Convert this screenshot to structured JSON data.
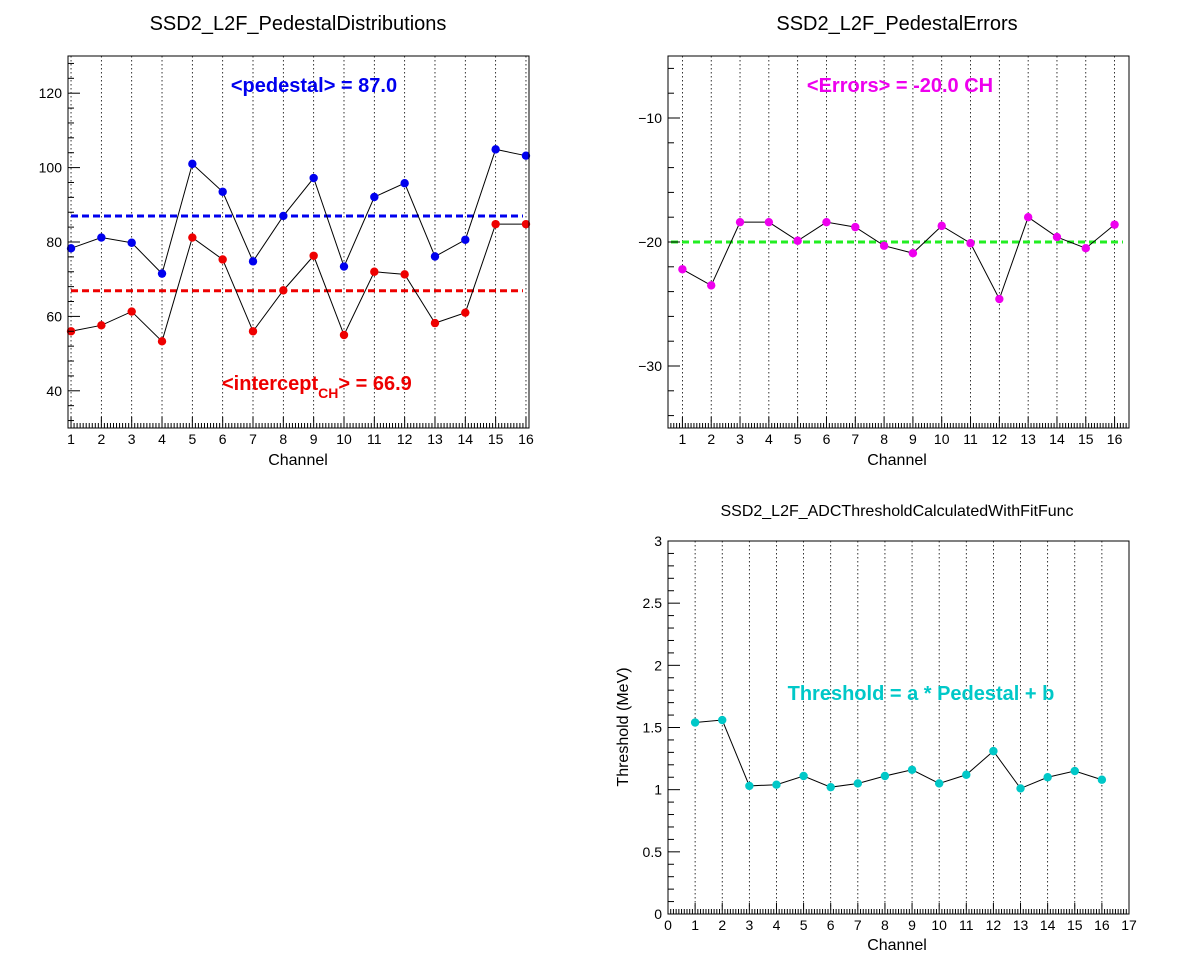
{
  "chart_data": [
    {
      "type": "line",
      "title": "SSD2_L2F_PedestalDistributions",
      "xlabel": "Channel",
      "ylabel": "",
      "xlim": [
        0.9,
        16.1
      ],
      "ylim": [
        30,
        130
      ],
      "x_ticks": [
        1,
        2,
        3,
        4,
        5,
        6,
        7,
        8,
        9,
        10,
        11,
        12,
        13,
        14,
        15,
        16
      ],
      "y_ticks": [
        40,
        60,
        80,
        100,
        120
      ],
      "vertical_grid": true,
      "x": [
        1,
        2,
        3,
        4,
        5,
        6,
        7,
        8,
        9,
        10,
        11,
        12,
        13,
        14,
        15,
        16
      ],
      "series": [
        {
          "name": "pedestal",
          "color": "#0000ee",
          "values": [
            78.3,
            81.2,
            79.8,
            71.5,
            101.0,
            93.5,
            74.8,
            87.0,
            97.2,
            73.4,
            92.1,
            95.8,
            76.1,
            80.6,
            104.9,
            103.2
          ]
        },
        {
          "name": "intercept",
          "color": "#ee0000",
          "values": [
            56.0,
            57.6,
            61.3,
            53.3,
            81.2,
            75.3,
            56.0,
            67.0,
            76.3,
            55.0,
            72.0,
            71.3,
            58.2,
            61.0,
            84.8,
            84.8
          ]
        }
      ],
      "mean_lines": [
        {
          "value": 87.0,
          "color": "#0000ee"
        },
        {
          "value": 66.9,
          "color": "#ee0000"
        }
      ],
      "annotations": [
        {
          "text": "<pedestal> = 87.0",
          "color": "#0000ee"
        },
        {
          "prefix": "<intercept",
          "subscript": "CH",
          "suffix": "> = 66.9",
          "color": "#ee0000"
        }
      ]
    },
    {
      "type": "line",
      "title": "SSD2_L2F_PedestalErrors",
      "xlabel": "Channel",
      "ylabel": "",
      "xlim": [
        0.5,
        16.5
      ],
      "ylim": [
        -35,
        -5
      ],
      "x_ticks": [
        1,
        2,
        3,
        4,
        5,
        6,
        7,
        8,
        9,
        10,
        11,
        12,
        13,
        14,
        15,
        16
      ],
      "y_ticks": [
        -30,
        -20,
        -10
      ],
      "vertical_grid": true,
      "x": [
        1,
        2,
        3,
        4,
        5,
        6,
        7,
        8,
        9,
        10,
        11,
        12,
        13,
        14,
        15,
        16
      ],
      "series": [
        {
          "name": "errors",
          "color": "#ee00ee",
          "values": [
            -22.2,
            -23.5,
            -18.4,
            -18.4,
            -19.9,
            -18.4,
            -18.8,
            -20.3,
            -20.9,
            -18.7,
            -20.1,
            -24.6,
            -18.0,
            -19.6,
            -20.5,
            -18.6
          ]
        }
      ],
      "mean_lines": [
        {
          "value": -20.0,
          "color": "#22ee22"
        }
      ],
      "annotations": [
        {
          "text": "<Errors> = -20.0 CH",
          "color": "#ee00ee"
        }
      ]
    },
    {
      "type": "line",
      "title": "SSD2_L2F_ADCThresholdCalculatedWithFitFunc",
      "xlabel": "Channel",
      "ylabel": "Threshold (MeV)",
      "xlim": [
        0,
        17
      ],
      "ylim": [
        0,
        3
      ],
      "x_ticks": [
        0,
        1,
        2,
        3,
        4,
        5,
        6,
        7,
        8,
        9,
        10,
        11,
        12,
        13,
        14,
        15,
        16,
        17
      ],
      "y_ticks": [
        0,
        0.5,
        1,
        1.5,
        2,
        2.5,
        3
      ],
      "y_tick_labels": [
        "0",
        "0.5",
        "1",
        "1.5",
        "2",
        "2.5",
        "3"
      ],
      "vertical_grid": true,
      "x": [
        1,
        2,
        3,
        4,
        5,
        6,
        7,
        8,
        9,
        10,
        11,
        12,
        13,
        14,
        15,
        16
      ],
      "series": [
        {
          "name": "threshold",
          "color": "#00c8c8",
          "values": [
            1.54,
            1.56,
            1.03,
            1.04,
            1.11,
            1.02,
            1.05,
            1.11,
            1.16,
            1.05,
            1.12,
            1.31,
            1.01,
            1.1,
            1.15,
            1.08
          ]
        }
      ],
      "mean_lines": [],
      "annotations": [
        {
          "text": "Threshold = a * Pedestal + b",
          "color": "#00c8c8"
        }
      ]
    }
  ]
}
